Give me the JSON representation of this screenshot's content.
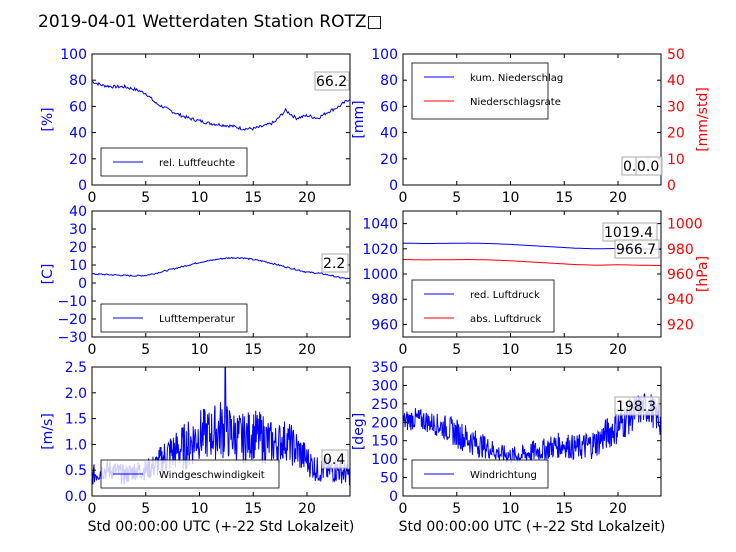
{
  "title": "2019-04-01 Wetterdaten Station ROTZ□",
  "colors": {
    "primary": "#0000ff",
    "secondary": "#ff0000",
    "axis": "#000000"
  },
  "chart_data": [
    {
      "id": "humidity",
      "type": "line",
      "xlim": [
        0,
        24
      ],
      "x_ticks": [
        "0",
        "5",
        "10",
        "15",
        "20"
      ],
      "ylim": [
        0,
        100
      ],
      "y_ticks": [
        "0",
        "20",
        "40",
        "60",
        "80",
        "100"
      ],
      "ylabel": "[%]",
      "legend": [
        "rel. Luftfeuchte"
      ],
      "legend_position": "lower-left",
      "series": [
        {
          "name": "rel. Luftfeuchte",
          "color": "#0000ff",
          "x": [
            0,
            1,
            2,
            3,
            4,
            5,
            6,
            7,
            8,
            9,
            10,
            11,
            12,
            13,
            14,
            15,
            16,
            17,
            18,
            19,
            20,
            21,
            22,
            23,
            24
          ],
          "y": [
            79,
            76,
            75,
            75,
            73,
            70,
            62,
            58,
            54,
            51,
            49,
            47,
            46,
            45,
            43,
            43,
            45,
            48,
            57,
            51,
            53,
            51,
            56,
            60,
            66
          ]
        }
      ],
      "last_value_labels": [
        "66.2"
      ]
    },
    {
      "id": "precip",
      "type": "line",
      "xlim": [
        0,
        24
      ],
      "x_ticks": [
        "0",
        "5",
        "10",
        "15",
        "20"
      ],
      "ylim": [
        0,
        100
      ],
      "y_ticks": [
        "0",
        "20",
        "40",
        "60",
        "80",
        "100"
      ],
      "ylabel": "[mm]",
      "ylim_right": [
        0,
        50
      ],
      "y_ticks_right": [
        "0",
        "10",
        "20",
        "30",
        "40",
        "50"
      ],
      "ylabel_right": "[mm/std]",
      "legend": [
        "kum. Niederschlag",
        "Niederschlagsrate"
      ],
      "legend_position": "upper-left",
      "series": [
        {
          "name": "kum. Niederschlag",
          "color": "#0000ff",
          "axis": "left",
          "x": [
            0,
            24
          ],
          "y": [
            0,
            0
          ]
        },
        {
          "name": "Niederschlagsrate",
          "color": "#ff0000",
          "axis": "right",
          "x": [
            0,
            24
          ],
          "y": [
            0,
            0
          ]
        }
      ],
      "last_value_labels": [
        "0.0",
        "0.0"
      ]
    },
    {
      "id": "temperature",
      "type": "line",
      "xlim": [
        0,
        24
      ],
      "x_ticks": [
        "0",
        "5",
        "10",
        "15",
        "20"
      ],
      "ylim": [
        -30,
        40
      ],
      "y_ticks": [
        "−30",
        "−20",
        "−10",
        "0",
        "10",
        "20",
        "30",
        "40"
      ],
      "ylabel": "[C]",
      "legend": [
        "Lufttemperatur"
      ],
      "legend_position": "lower-left",
      "series": [
        {
          "name": "Lufttemperatur",
          "color": "#0000ff",
          "x": [
            0,
            1,
            2,
            3,
            4,
            5,
            6,
            7,
            8,
            9,
            10,
            11,
            12,
            13,
            14,
            15,
            16,
            17,
            18,
            19,
            20,
            21,
            22,
            23,
            24
          ],
          "y": [
            5,
            4.8,
            4.5,
            4.2,
            4,
            4.2,
            5.5,
            7,
            8.5,
            10,
            11.5,
            12.5,
            13.5,
            14,
            14,
            13,
            12,
            10.5,
            9,
            7.5,
            6,
            5.5,
            4.5,
            3,
            2.2
          ]
        }
      ],
      "last_value_labels": [
        "2.2"
      ]
    },
    {
      "id": "pressure",
      "type": "line",
      "xlim": [
        0,
        24
      ],
      "x_ticks": [
        "0",
        "5",
        "10",
        "15",
        "20"
      ],
      "ylim": [
        950,
        1050
      ],
      "y_ticks": [
        "960",
        "980",
        "1000",
        "1020",
        "1040"
      ],
      "ylim_right": [
        910,
        1010
      ],
      "y_ticks_right": [
        "920",
        "940",
        "960",
        "980",
        "1000"
      ],
      "ylabel_right": "[hPa]",
      "legend": [
        "red. Luftdruck",
        "abs. Luftdruck"
      ],
      "legend_position": "lower-left",
      "series": [
        {
          "name": "red. Luftdruck",
          "color": "#0000ff",
          "axis": "left",
          "x": [
            0,
            2,
            4,
            6,
            8,
            10,
            12,
            14,
            16,
            18,
            20,
            22,
            24
          ],
          "y": [
            1024.5,
            1024.2,
            1024.3,
            1024.5,
            1024.2,
            1023.5,
            1022.5,
            1021.5,
            1020.5,
            1020,
            1020.3,
            1020,
            1019.4
          ]
        },
        {
          "name": "abs. Luftdruck",
          "color": "#ff0000",
          "axis": "right",
          "x": [
            0,
            2,
            4,
            6,
            8,
            10,
            12,
            14,
            16,
            18,
            20,
            22,
            24
          ],
          "y": [
            971.5,
            971.2,
            971.3,
            971.5,
            971.2,
            970.5,
            969.5,
            968.5,
            967.5,
            967,
            967.3,
            967,
            966.7
          ]
        }
      ],
      "last_value_labels": [
        "1019.4",
        "966.7"
      ]
    },
    {
      "id": "windspeed",
      "type": "line",
      "xlim": [
        0,
        24
      ],
      "x_ticks": [
        "0",
        "5",
        "10",
        "15",
        "20"
      ],
      "ylim": [
        0,
        2.5
      ],
      "y_ticks": [
        "0.0",
        "0.5",
        "1.0",
        "1.5",
        "2.0",
        "2.5"
      ],
      "ylabel": "[m/s]",
      "xlabel": "Std 00:00:00 UTC (+-22 Std Lokalzeit)",
      "legend": [
        "Windgeschwindigkeit"
      ],
      "legend_position": "lower-left",
      "series": [
        {
          "name": "Windgeschwindigkeit",
          "color": "#0000ff",
          "x": [
            0,
            1,
            2,
            3,
            4,
            5,
            6,
            7,
            8,
            9,
            10,
            11,
            12,
            13,
            14,
            15,
            16,
            17,
            18,
            19,
            20,
            21,
            22,
            23,
            24
          ],
          "y": [
            0.4,
            0.5,
            0.5,
            0.4,
            0.5,
            0.5,
            0.6,
            0.8,
            0.9,
            1.0,
            1.2,
            1.2,
            1.3,
            1.2,
            1.1,
            1.2,
            1.1,
            1.0,
            1.1,
            0.9,
            0.7,
            0.5,
            0.5,
            0.5,
            0.4
          ],
          "spread": [
            0.2,
            0.2,
            0.2,
            0.2,
            0.2,
            0.2,
            0.25,
            0.4,
            0.4,
            0.5,
            0.5,
            0.5,
            0.6,
            0.5,
            0.5,
            0.5,
            0.5,
            0.4,
            0.4,
            0.4,
            0.3,
            0.25,
            0.25,
            0.25,
            0.2
          ]
        }
      ],
      "last_value_labels": [
        "0.4"
      ]
    },
    {
      "id": "winddir",
      "type": "line",
      "xlim": [
        0,
        24
      ],
      "x_ticks": [
        "0",
        "5",
        "10",
        "15",
        "20"
      ],
      "ylim": [
        0,
        350
      ],
      "y_ticks": [
        "0",
        "50",
        "100",
        "150",
        "200",
        "250",
        "300",
        "350"
      ],
      "ylabel": "[deg]",
      "xlabel": "Std 00:00:00 UTC (+-22 Std Lokalzeit)",
      "legend": [
        "Windrichtung"
      ],
      "legend_position": "lower-left",
      "series": [
        {
          "name": "Windrichtung",
          "color": "#0000ff",
          "x": [
            0,
            1,
            2,
            3,
            4,
            5,
            6,
            7,
            8,
            9,
            10,
            11,
            12,
            13,
            14,
            15,
            16,
            17,
            18,
            19,
            20,
            21,
            22,
            23,
            24
          ],
          "y": [
            200,
            210,
            205,
            195,
            185,
            170,
            155,
            140,
            130,
            115,
            110,
            110,
            120,
            125,
            135,
            140,
            130,
            135,
            145,
            170,
            190,
            215,
            235,
            240,
            198
          ],
          "spread": [
            30,
            30,
            30,
            30,
            35,
            40,
            40,
            35,
            30,
            25,
            25,
            25,
            30,
            30,
            35,
            35,
            35,
            40,
            40,
            45,
            50,
            50,
            45,
            45,
            40
          ]
        }
      ],
      "last_value_labels": [
        "198.3"
      ]
    }
  ]
}
